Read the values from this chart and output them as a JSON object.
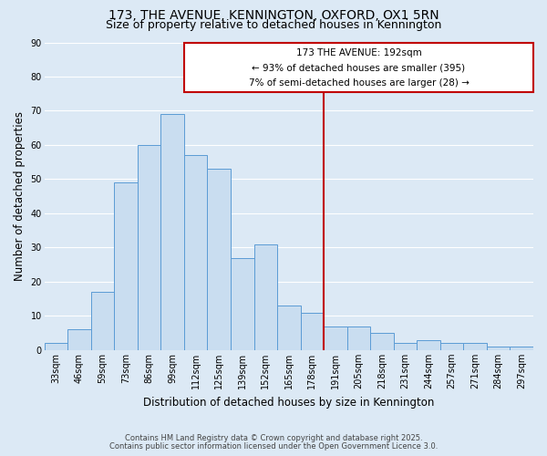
{
  "title1": "173, THE AVENUE, KENNINGTON, OXFORD, OX1 5RN",
  "title2": "Size of property relative to detached houses in Kennington",
  "xlabel": "Distribution of detached houses by size in Kennington",
  "ylabel": "Number of detached properties",
  "bin_labels": [
    "33sqm",
    "46sqm",
    "59sqm",
    "73sqm",
    "86sqm",
    "99sqm",
    "112sqm",
    "125sqm",
    "139sqm",
    "152sqm",
    "165sqm",
    "178sqm",
    "191sqm",
    "205sqm",
    "218sqm",
    "231sqm",
    "244sqm",
    "257sqm",
    "271sqm",
    "284sqm",
    "297sqm"
  ],
  "bar_heights": [
    2,
    6,
    17,
    49,
    60,
    69,
    57,
    53,
    27,
    31,
    13,
    11,
    7,
    7,
    5,
    2,
    3,
    2,
    2,
    1,
    1
  ],
  "bar_color": "#c9ddf0",
  "bar_edge_color": "#5b9bd5",
  "background_color": "#dce9f5",
  "grid_color": "#ffffff",
  "vline_color": "#c00000",
  "annotation_title": "173 THE AVENUE: 192sqm",
  "annotation_line1": "← 93% of detached houses are smaller (395)",
  "annotation_line2": "7% of semi-detached houses are larger (28) →",
  "annotation_box_color": "#c00000",
  "ylim": [
    0,
    90
  ],
  "yticks": [
    0,
    10,
    20,
    30,
    40,
    50,
    60,
    70,
    80,
    90
  ],
  "footnote1": "Contains HM Land Registry data © Crown copyright and database right 2025.",
  "footnote2": "Contains public sector information licensed under the Open Government Licence 3.0.",
  "title_fontsize": 10,
  "subtitle_fontsize": 9,
  "tick_fontsize": 7,
  "ylabel_fontsize": 8.5,
  "xlabel_fontsize": 8.5,
  "footnote_fontsize": 6,
  "ann_fontsize_title": 7.5,
  "ann_fontsize_lines": 7.5
}
